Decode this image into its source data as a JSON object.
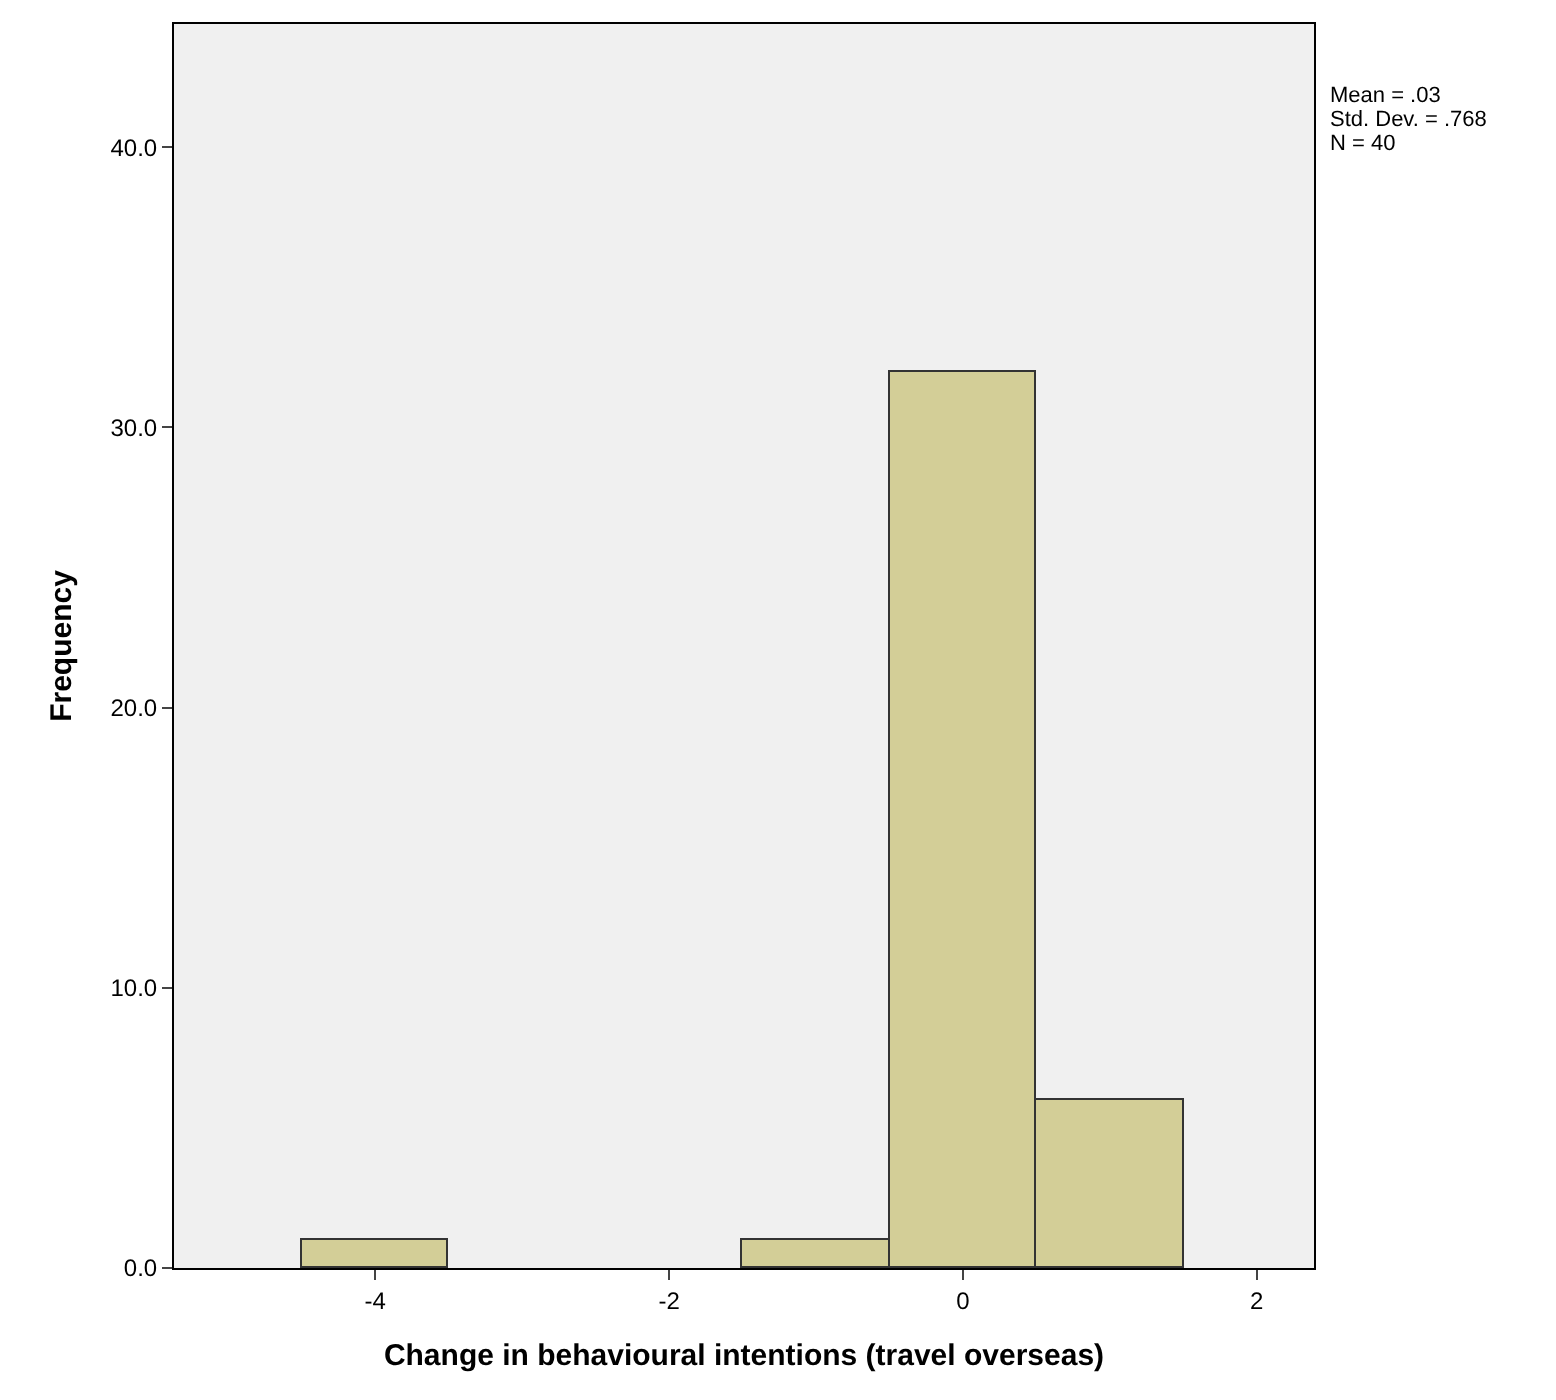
{
  "chart_data": {
    "type": "histogram",
    "xlabel": "Change in behavioural intentions (travel overseas)",
    "ylabel": "Frequency",
    "bins": [
      -4.5,
      -3.5,
      -2.5,
      -1.5,
      -0.5,
      0.5,
      1.5
    ],
    "values": [
      1,
      0,
      0,
      1,
      32,
      6
    ],
    "color": "#d3ce97",
    "xlim": [
      -5.37,
      2.39
    ],
    "xticks": [
      {
        "value": -4,
        "label": "-4"
      },
      {
        "value": -2,
        "label": "-2"
      },
      {
        "value": 0,
        "label": "0"
      },
      {
        "value": 2,
        "label": "2"
      }
    ],
    "ylim": [
      0,
      44.4
    ],
    "yticks": [
      {
        "value": 0,
        "label": "0.0"
      },
      {
        "value": 10,
        "label": "10.0"
      },
      {
        "value": 20,
        "label": "20.0"
      },
      {
        "value": 30,
        "label": "30.0"
      },
      {
        "value": 40,
        "label": "40.0"
      }
    ],
    "grid": false,
    "annotations": [
      "Mean = .03",
      "Std. Dev. = .768",
      "N = 40"
    ]
  }
}
